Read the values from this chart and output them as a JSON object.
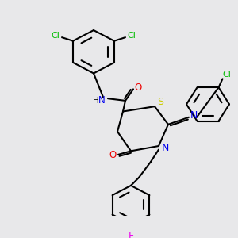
{
  "bg_color": "#e8e8ea",
  "bond_color": "#000000",
  "atom_colors": {
    "N": "#0000ee",
    "O": "#ee0000",
    "S": "#cccc00",
    "Cl": "#00bb00",
    "F": "#ee00ee",
    "H": "#888888"
  },
  "figsize": [
    3.0,
    3.0
  ],
  "dpi": 100
}
